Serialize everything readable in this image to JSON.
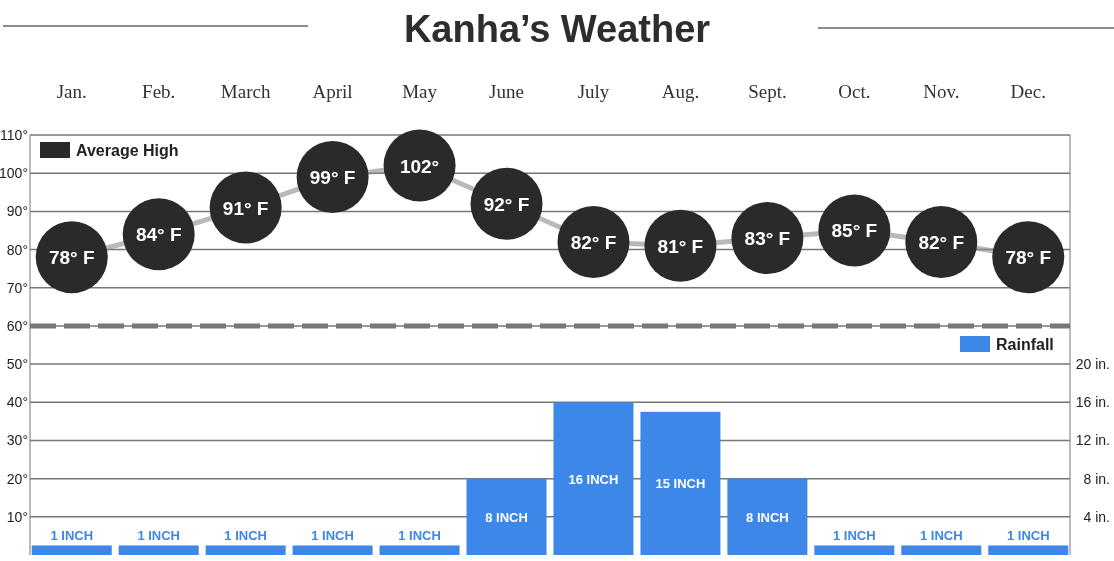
{
  "chart_data": {
    "type": "bar",
    "title": "Kanha’s Weather",
    "categories": [
      "Jan.",
      "Feb.",
      "March",
      "April",
      "May",
      "June",
      "July",
      "Aug.",
      "Sept.",
      "Oct.",
      "Nov.",
      "Dec."
    ],
    "series": [
      {
        "type": "line",
        "color": "#8a8a8a",
        "values": [
          78,
          84,
          91,
          99,
          102,
          92,
          82,
          81,
          83,
          85,
          82,
          78
        ]
      },
      {
        "name": "Average High",
        "type": "bubble",
        "color": "#2a2a2a",
        "values": [
          78,
          84,
          91,
          99,
          102,
          92,
          82,
          81,
          83,
          85,
          82,
          78
        ],
        "sizes": [
          1,
          1,
          1,
          1,
          1,
          1,
          1,
          1,
          1,
          1,
          1,
          1
        ],
        "value_labels": [
          "78° F",
          "84° F",
          "91° F",
          "99° F",
          "102°",
          "92° F",
          "82° F",
          "81° F",
          "83° F",
          "85° F",
          "82° F",
          "78° F"
        ]
      },
      {
        "name": "Rainfall",
        "axis": "y2",
        "color": "#3d87e8",
        "values": [
          1,
          1,
          1,
          1,
          1,
          8,
          16,
          15,
          8,
          1,
          1,
          1
        ],
        "value_labels": [
          "1 INCH",
          "1 INCH",
          "1 INCH",
          "1 INCH",
          "1 INCH",
          "8 INCH",
          "16 INCH",
          "15 INCH",
          "8 INCH",
          "1 INCH",
          "1 INCH",
          "1 INCH"
        ]
      }
    ],
    "ylim": [
      0,
      110
    ],
    "yticks": [
      {
        "value": 10,
        "label": "10°"
      },
      {
        "value": 20,
        "label": "20°"
      },
      {
        "value": 30,
        "label": "30°"
      },
      {
        "value": 40,
        "label": "40°"
      },
      {
        "value": 50,
        "label": "50°"
      },
      {
        "value": 60,
        "label": "60°"
      },
      {
        "value": 70,
        "label": "70°"
      },
      {
        "value": 80,
        "label": "80°"
      },
      {
        "value": 90,
        "label": "90°"
      },
      {
        "value": 100,
        "label": "100°"
      },
      {
        "value": 110,
        "label": "110°"
      }
    ],
    "y2lim": [
      0,
      44
    ],
    "y2ticks": [
      {
        "value": 4,
        "label": "4 in."
      },
      {
        "value": 8,
        "label": "8 in."
      },
      {
        "value": 12,
        "label": "12 in."
      },
      {
        "value": 16,
        "label": "16 in."
      },
      {
        "value": 20,
        "label": "20 in."
      }
    ],
    "ref_lines": [
      {
        "axis": "y",
        "value": 60,
        "color": "#777777",
        "line_style": "dashed"
      }
    ],
    "grid": "y",
    "legend": "top left"
  }
}
